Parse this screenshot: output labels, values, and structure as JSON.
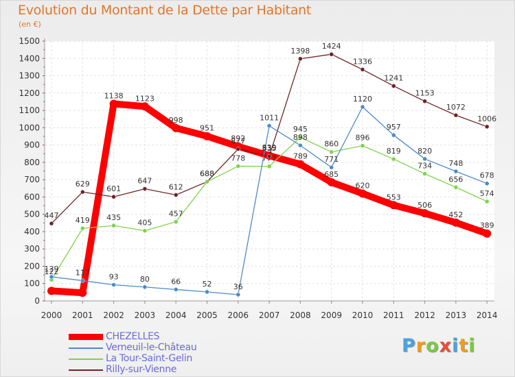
{
  "chart_data": {
    "type": "line",
    "title": "Evolution du Montant de la Dette par Habitant",
    "subtitle": "(en €)",
    "x": [
      "2000",
      "2001",
      "2002",
      "2003",
      "2004",
      "2005",
      "2006",
      "2007",
      "2008",
      "2009",
      "2010",
      "2011",
      "2012",
      "2013",
      "2014"
    ],
    "ylim": [
      0,
      1500
    ],
    "yticks": [
      0,
      100,
      200,
      300,
      400,
      500,
      600,
      700,
      800,
      900,
      1000,
      1100,
      1200,
      1300,
      1400,
      1500
    ],
    "grid": true,
    "legend_position": "bottom-left",
    "series": [
      {
        "name": "CHEZELLES",
        "color": "#ff0000",
        "values": [
          58,
          47,
          1138,
          1123,
          998,
          951,
          892,
          839,
          789,
          685,
          620,
          553,
          506,
          452,
          389
        ],
        "labels": [
          "",
          "",
          "1138",
          "1123",
          "998",
          "951",
          "892",
          "839",
          "789",
          "685",
          "620",
          "553",
          "506",
          "452",
          "389"
        ]
      },
      {
        "name": "Verneuil-le-Château",
        "color": "#4a8ac8",
        "values": [
          139,
          117,
          93,
          80,
          66,
          52,
          36,
          1011,
          898,
          771,
          1120,
          957,
          820,
          748,
          678
        ],
        "labels": [
          "139",
          "117",
          "93",
          "80",
          "66",
          "52",
          "36",
          "1011",
          "898",
          "771",
          "1120",
          "957",
          "820",
          "748",
          "678"
        ]
      },
      {
        "name": "La Tour-Saint-Gelin",
        "color": "#7dd34a",
        "values": [
          122,
          419,
          435,
          405,
          457,
          688,
          778,
          777,
          945,
          860,
          896,
          819,
          734,
          656,
          574
        ],
        "labels": [
          "122",
          "419",
          "435",
          "405",
          "457",
          "688",
          "778",
          "777",
          "945",
          "860",
          "896",
          "819",
          "734",
          "656",
          "574"
        ]
      },
      {
        "name": "Rilly-sur-Vienne",
        "color": "#6e2323",
        "values": [
          447,
          629,
          601,
          647,
          612,
          688,
          877,
          835,
          1398,
          1424,
          1336,
          1241,
          1153,
          1072,
          1006
        ],
        "labels": [
          "447",
          "629",
          "601",
          "647",
          "612",
          "688",
          "877",
          "835",
          "1398",
          "1424",
          "1336",
          "1241",
          "1153",
          "1072",
          "1006"
        ]
      }
    ]
  },
  "logo": {
    "text": "Proxiti",
    "letters": [
      "P",
      "r",
      "o",
      "x",
      "i",
      "t",
      "i"
    ],
    "colors": [
      "#4aa3df",
      "#f39c12",
      "#7ac943",
      "#e74c3c",
      "#4aa3df",
      "#f39c12",
      "#7ac943"
    ]
  }
}
